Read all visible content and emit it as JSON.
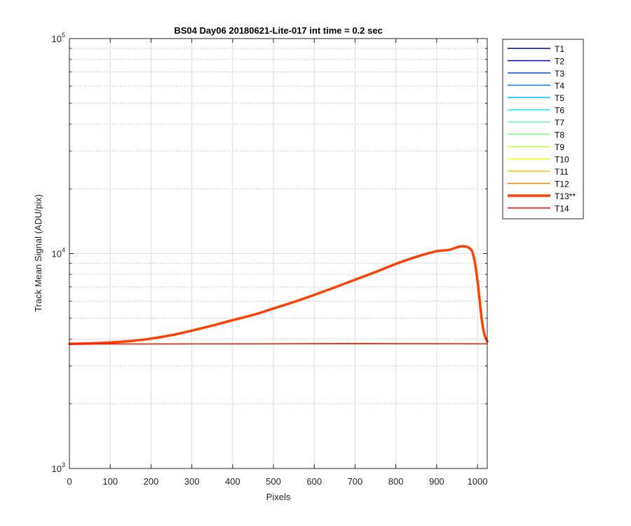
{
  "chart_data": {
    "type": "line",
    "title": "BS04 Day06 20180621-Lite-017 int time = 0.2 sec",
    "xlabel": "Pixels",
    "ylabel": "Track Mean Signal (ADU/pix)",
    "x_scale": "linear",
    "y_scale": "log",
    "xlim": [
      0,
      1024
    ],
    "ylim": [
      1000,
      100000
    ],
    "x_ticks": [
      0,
      100,
      200,
      300,
      400,
      500,
      600,
      700,
      800,
      900,
      1000
    ],
    "x_tick_labels": [
      "0",
      "100",
      "200",
      "300",
      "400",
      "500",
      "600",
      "700",
      "800",
      "900",
      "1000"
    ],
    "y_ticks": [
      {
        "value": 1000,
        "base": "10",
        "exp": "3"
      },
      {
        "value": 10000,
        "base": "10",
        "exp": "4"
      },
      {
        "value": 100000,
        "base": "10",
        "exp": "5"
      }
    ],
    "grid": true,
    "minor_grid": true,
    "legend_position": "outside-right",
    "series": [
      {
        "name": "T1",
        "color": "#00008f",
        "highlight": false,
        "x": [
          0,
          1024
        ],
        "y": [
          3800,
          3800
        ]
      },
      {
        "name": "T2",
        "color": "#0000d0",
        "highlight": false,
        "x": [
          0,
          1024
        ],
        "y": [
          3800,
          3800
        ]
      },
      {
        "name": "T3",
        "color": "#0040ff",
        "highlight": false,
        "x": [
          0,
          1024
        ],
        "y": [
          3800,
          3800
        ]
      },
      {
        "name": "T4",
        "color": "#0080ff",
        "highlight": false,
        "x": [
          0,
          1024
        ],
        "y": [
          3800,
          3800
        ]
      },
      {
        "name": "T5",
        "color": "#00bfff",
        "highlight": false,
        "x": [
          0,
          1024
        ],
        "y": [
          3800,
          3800
        ]
      },
      {
        "name": "T6",
        "color": "#10efef",
        "highlight": false,
        "x": [
          0,
          1024
        ],
        "y": [
          3800,
          3800
        ]
      },
      {
        "name": "T7",
        "color": "#60ffbf",
        "highlight": false,
        "x": [
          0,
          1024
        ],
        "y": [
          3800,
          3800
        ]
      },
      {
        "name": "T8",
        "color": "#80ff80",
        "highlight": false,
        "x": [
          0,
          1024
        ],
        "y": [
          3800,
          3800
        ]
      },
      {
        "name": "T9",
        "color": "#bfff40",
        "highlight": false,
        "x": [
          0,
          1024
        ],
        "y": [
          3800,
          3800
        ]
      },
      {
        "name": "T10",
        "color": "#ffff00",
        "highlight": false,
        "x": [
          0,
          1024
        ],
        "y": [
          3800,
          3800
        ]
      },
      {
        "name": "T11",
        "color": "#ffbf00",
        "highlight": false,
        "x": [
          0,
          1024
        ],
        "y": [
          3800,
          3800
        ]
      },
      {
        "name": "T12",
        "color": "#ff8000",
        "highlight": false,
        "x": [
          0,
          1024
        ],
        "y": [
          3800,
          3800
        ]
      },
      {
        "name": "T13**",
        "color": "#ff4000",
        "highlight": true,
        "x": [
          0,
          50,
          100,
          150,
          200,
          250,
          300,
          350,
          400,
          450,
          500,
          550,
          600,
          650,
          700,
          750,
          800,
          850,
          900,
          930,
          960,
          980,
          990,
          1000,
          1010,
          1017,
          1024
        ],
        "y": [
          3800,
          3820,
          3860,
          3920,
          4020,
          4170,
          4380,
          4620,
          4900,
          5180,
          5550,
          5950,
          6420,
          6950,
          7550,
          8200,
          8950,
          9650,
          10250,
          10400,
          10800,
          10600,
          9800,
          7500,
          5000,
          4200,
          3900
        ]
      },
      {
        "name": "T14",
        "color": "#ff0000",
        "highlight": false,
        "x": [
          0,
          200,
          400,
          600,
          700,
          800,
          1024
        ],
        "y": [
          3790,
          3795,
          3800,
          3810,
          3815,
          3812,
          3805
        ]
      }
    ]
  }
}
